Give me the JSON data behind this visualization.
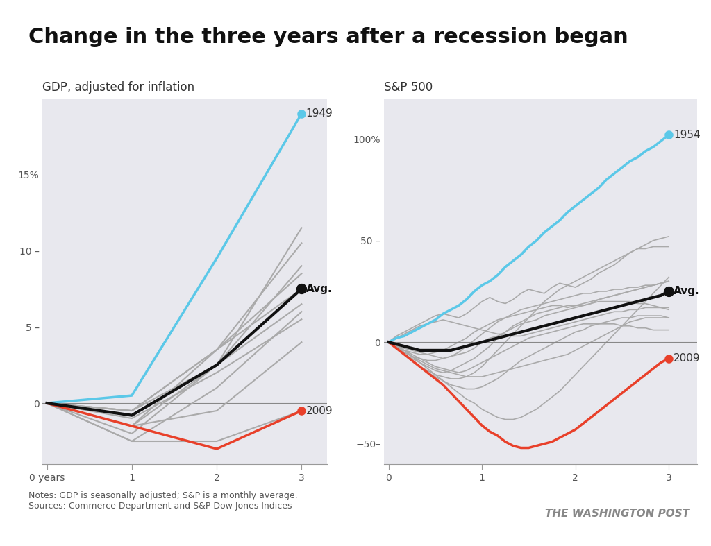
{
  "title": "Change in the three years after a recession began",
  "title_fontsize": 22,
  "gdp_subtitle": "GDP, adjusted for inflation",
  "sp_subtitle": "S&P 500",
  "notes": "Notes: GDP is seasonally adjusted; S&P is a monthly average.\nSources: Commerce Department and S&P Dow Jones Indices",
  "watermark": "THE WASHINGTON POST",
  "bg_color": "#f0f0f0",
  "panel_bg": "#e8e8ee",
  "highlight_color": "#5bc8e8",
  "red_color": "#e8402a",
  "gray_color": "#aaaaaa",
  "black_color": "#111111",
  "gdp_highlight_year": "1949",
  "gdp_red_year": "2009",
  "sp_highlight_year": "1954",
  "sp_red_year": "2009",
  "gdp_ylim": [
    -4,
    20
  ],
  "sp_ylim": [
    -60,
    120
  ],
  "gdp_yticks": [
    0,
    5,
    10,
    15
  ],
  "gdp_ytick_labels": [
    "0",
    "5 –",
    "10 –",
    "15%"
  ],
  "sp_yticks": [
    -50,
    0,
    50,
    100
  ],
  "sp_ytick_labels": [
    "-50–",
    "0",
    "50 –",
    "100%"
  ],
  "xticks": [
    0,
    1,
    2,
    3
  ],
  "gdp_xlabel_labels": [
    "0 years",
    "1",
    "2",
    "3"
  ],
  "sp_xlabel_labels": [
    "0",
    "1",
    "2",
    "3"
  ],
  "gdp_series": {
    "1949": [
      0,
      0.5,
      9.5,
      19.0
    ],
    "1953": [
      0,
      -1.5,
      3.5,
      8.5
    ],
    "1957": [
      0,
      -1.5,
      2.5,
      6.5
    ],
    "1960": [
      0,
      -0.5,
      3.5,
      7.5
    ],
    "1969": [
      0,
      -1.0,
      2.0,
      5.5
    ],
    "1973": [
      0,
      -1.5,
      -0.5,
      4.0
    ],
    "1980": [
      0,
      -2.5,
      1.0,
      6.0
    ],
    "1981": [
      0,
      -2.0,
      2.5,
      9.0
    ],
    "1990": [
      0,
      -0.5,
      3.5,
      10.5
    ],
    "2001": [
      0,
      -0.5,
      2.5,
      11.5
    ],
    "2007": [
      0,
      -2.5,
      -2.5,
      -0.5
    ],
    "2009_red": [
      0,
      -1.5,
      -3.0,
      -0.5
    ]
  },
  "gdp_avg": [
    0,
    -0.8,
    2.5,
    7.5
  ],
  "sp_series_monthly": {
    "1954": {
      "x": [
        0,
        0.083,
        0.167,
        0.25,
        0.333,
        0.417,
        0.5,
        0.583,
        0.667,
        0.75,
        0.833,
        0.917,
        1.0,
        1.083,
        1.167,
        1.25,
        1.333,
        1.417,
        1.5,
        1.583,
        1.667,
        1.75,
        1.833,
        1.917,
        2.0,
        2.083,
        2.167,
        2.25,
        2.333,
        2.417,
        2.5,
        2.583,
        2.667,
        2.75,
        2.833,
        2.917,
        3.0
      ],
      "y": [
        0,
        2,
        3,
        5,
        7,
        9,
        11,
        14,
        16,
        18,
        21,
        25,
        28,
        30,
        33,
        37,
        40,
        43,
        47,
        50,
        54,
        57,
        60,
        64,
        67,
        70,
        73,
        76,
        80,
        83,
        86,
        89,
        91,
        94,
        96,
        99,
        102
      ]
    },
    "1949": {
      "x": [
        0,
        0.083,
        0.167,
        0.25,
        0.333,
        0.417,
        0.5,
        0.583,
        0.667,
        0.75,
        0.833,
        0.917,
        1.0,
        1.083,
        1.167,
        1.25,
        1.333,
        1.417,
        1.5,
        1.583,
        1.667,
        1.75,
        1.833,
        1.917,
        2.0,
        2.083,
        2.167,
        2.25,
        2.333,
        2.417,
        2.5,
        2.583,
        2.667,
        2.75,
        2.833,
        2.917,
        3.0
      ],
      "y": [
        0,
        3,
        5,
        7,
        9,
        11,
        13,
        14,
        13,
        12,
        14,
        17,
        20,
        22,
        20,
        19,
        21,
        24,
        26,
        25,
        24,
        27,
        29,
        28,
        27,
        29,
        31,
        34,
        36,
        38,
        41,
        44,
        46,
        46,
        47,
        47,
        47
      ]
    },
    "1953": {
      "x": [
        0,
        0.083,
        0.167,
        0.25,
        0.333,
        0.417,
        0.5,
        0.583,
        0.667,
        0.75,
        0.833,
        0.917,
        1.0,
        1.083,
        1.167,
        1.25,
        1.333,
        1.417,
        1.5,
        1.583,
        1.667,
        1.75,
        1.833,
        1.917,
        2.0,
        2.083,
        2.167,
        2.25,
        2.333,
        2.417,
        2.5,
        2.583,
        2.667,
        2.75,
        2.833,
        2.917,
        3.0
      ],
      "y": [
        0,
        -2,
        -3,
        -4,
        -5,
        -6,
        -7,
        -8,
        -7,
        -6,
        -5,
        -3,
        0,
        2,
        3,
        5,
        7,
        9,
        10,
        11,
        13,
        14,
        15,
        16,
        17,
        18,
        19,
        21,
        22,
        23,
        24,
        25,
        26,
        27,
        28,
        29,
        30
      ]
    },
    "1957": {
      "x": [
        0,
        0.083,
        0.167,
        0.25,
        0.333,
        0.417,
        0.5,
        0.583,
        0.667,
        0.75,
        0.833,
        0.917,
        1.0,
        1.083,
        1.167,
        1.25,
        1.333,
        1.417,
        1.5,
        1.583,
        1.667,
        1.75,
        1.833,
        1.917,
        2.0,
        2.083,
        2.167,
        2.25,
        2.333,
        2.417,
        2.5,
        2.583,
        2.667,
        2.75,
        2.833,
        2.917,
        3.0
      ],
      "y": [
        0,
        -3,
        -6,
        -8,
        -10,
        -12,
        -14,
        -15,
        -14,
        -12,
        -10,
        -8,
        -5,
        -2,
        2,
        5,
        8,
        10,
        12,
        14,
        15,
        16,
        17,
        18,
        18,
        19,
        20,
        21,
        22,
        23,
        24,
        25,
        26,
        27,
        28,
        29,
        30
      ]
    },
    "1960": {
      "x": [
        0,
        0.083,
        0.167,
        0.25,
        0.333,
        0.417,
        0.5,
        0.583,
        0.667,
        0.75,
        0.833,
        0.917,
        1.0,
        1.083,
        1.167,
        1.25,
        1.333,
        1.417,
        1.5,
        1.583,
        1.667,
        1.75,
        1.833,
        1.917,
        2.0,
        2.083,
        2.167,
        2.25,
        2.333,
        2.417,
        2.5,
        2.583,
        2.667,
        2.75,
        2.833,
        2.917,
        3.0
      ],
      "y": [
        0,
        -2,
        -4,
        -5,
        -6,
        -6,
        -5,
        -4,
        -2,
        0,
        2,
        5,
        7,
        9,
        11,
        12,
        13,
        14,
        15,
        16,
        17,
        18,
        18,
        17,
        18,
        18,
        19,
        20,
        20,
        20,
        20,
        20,
        19,
        19,
        18,
        17,
        16
      ]
    },
    "1969": {
      "x": [
        0,
        0.083,
        0.167,
        0.25,
        0.333,
        0.417,
        0.5,
        0.583,
        0.667,
        0.75,
        0.833,
        0.917,
        1.0,
        1.083,
        1.167,
        1.25,
        1.333,
        1.417,
        1.5,
        1.583,
        1.667,
        1.75,
        1.833,
        1.917,
        2.0,
        2.083,
        2.167,
        2.25,
        2.333,
        2.417,
        2.5,
        2.583,
        2.667,
        2.75,
        2.833,
        2.917,
        3.0
      ],
      "y": [
        0,
        -2,
        -4,
        -6,
        -8,
        -10,
        -12,
        -13,
        -14,
        -15,
        -14,
        -12,
        -10,
        -8,
        -6,
        -4,
        -2,
        0,
        2,
        3,
        4,
        5,
        6,
        7,
        8,
        9,
        9,
        9,
        9,
        9,
        8,
        8,
        7,
        7,
        6,
        6,
        6
      ]
    },
    "1973": {
      "x": [
        0,
        0.083,
        0.167,
        0.25,
        0.333,
        0.417,
        0.5,
        0.583,
        0.667,
        0.75,
        0.833,
        0.917,
        1.0,
        1.083,
        1.167,
        1.25,
        1.333,
        1.417,
        1.5,
        1.583,
        1.667,
        1.75,
        1.833,
        1.917,
        2.0,
        2.083,
        2.167,
        2.25,
        2.333,
        2.417,
        2.5,
        2.583,
        2.667,
        2.75,
        2.833,
        2.917,
        3.0
      ],
      "y": [
        0,
        -3,
        -6,
        -9,
        -12,
        -15,
        -17,
        -19,
        -21,
        -22,
        -23,
        -23,
        -22,
        -20,
        -18,
        -15,
        -12,
        -9,
        -7,
        -5,
        -3,
        -1,
        1,
        3,
        5,
        6,
        8,
        9,
        10,
        11,
        12,
        12,
        13,
        13,
        13,
        13,
        12
      ]
    },
    "1980": {
      "x": [
        0,
        0.083,
        0.167,
        0.25,
        0.333,
        0.417,
        0.5,
        0.583,
        0.667,
        0.75,
        0.833,
        0.917,
        1.0,
        1.083,
        1.167,
        1.25,
        1.333,
        1.417,
        1.5,
        1.583,
        1.667,
        1.75,
        1.833,
        1.917,
        2.0,
        2.083,
        2.167,
        2.25,
        2.333,
        2.417,
        2.5,
        2.583,
        2.667,
        2.75,
        2.833,
        2.917,
        3.0
      ],
      "y": [
        0,
        2,
        4,
        6,
        8,
        9,
        10,
        11,
        10,
        9,
        8,
        7,
        6,
        5,
        4,
        4,
        3,
        3,
        4,
        5,
        6,
        7,
        8,
        9,
        10,
        11,
        12,
        13,
        14,
        15,
        15,
        16,
        16,
        17,
        17,
        17,
        17
      ]
    },
    "1981": {
      "x": [
        0,
        0.083,
        0.167,
        0.25,
        0.333,
        0.417,
        0.5,
        0.583,
        0.667,
        0.75,
        0.833,
        0.917,
        1.0,
        1.083,
        1.167,
        1.25,
        1.333,
        1.417,
        1.5,
        1.583,
        1.667,
        1.75,
        1.833,
        1.917,
        2.0,
        2.083,
        2.167,
        2.25,
        2.333,
        2.417,
        2.5,
        2.583,
        2.667,
        2.75,
        2.833,
        2.917,
        3.0
      ],
      "y": [
        0,
        -3,
        -6,
        -9,
        -12,
        -14,
        -16,
        -17,
        -18,
        -18,
        -17,
        -15,
        -12,
        -8,
        -4,
        0,
        4,
        8,
        12,
        16,
        20,
        23,
        26,
        28,
        30,
        32,
        34,
        36,
        38,
        40,
        42,
        44,
        46,
        48,
        50,
        51,
        52
      ]
    },
    "1990": {
      "x": [
        0,
        0.083,
        0.167,
        0.25,
        0.333,
        0.417,
        0.5,
        0.583,
        0.667,
        0.75,
        0.833,
        0.917,
        1.0,
        1.083,
        1.167,
        1.25,
        1.333,
        1.417,
        1.5,
        1.583,
        1.667,
        1.75,
        1.833,
        1.917,
        2.0,
        2.083,
        2.167,
        2.25,
        2.333,
        2.417,
        2.5,
        2.583,
        2.667,
        2.75,
        2.833,
        2.917,
        3.0
      ],
      "y": [
        0,
        -3,
        -5,
        -7,
        -8,
        -9,
        -9,
        -8,
        -7,
        -5,
        -2,
        1,
        4,
        7,
        10,
        12,
        14,
        16,
        17,
        18,
        19,
        20,
        21,
        22,
        23,
        24,
        24,
        25,
        25,
        26,
        26,
        27,
        27,
        28,
        28,
        29,
        30
      ]
    },
    "2001": {
      "x": [
        0,
        0.083,
        0.167,
        0.25,
        0.333,
        0.417,
        0.5,
        0.583,
        0.667,
        0.75,
        0.833,
        0.917,
        1.0,
        1.083,
        1.167,
        1.25,
        1.333,
        1.417,
        1.5,
        1.583,
        1.667,
        1.75,
        1.833,
        1.917,
        2.0,
        2.083,
        2.167,
        2.25,
        2.333,
        2.417,
        2.5,
        2.583,
        2.667,
        2.75,
        2.833,
        2.917,
        3.0
      ],
      "y": [
        0,
        -2,
        -5,
        -7,
        -9,
        -11,
        -13,
        -14,
        -15,
        -16,
        -17,
        -17,
        -17,
        -16,
        -15,
        -14,
        -13,
        -12,
        -11,
        -10,
        -9,
        -8,
        -7,
        -6,
        -4,
        -2,
        0,
        2,
        4,
        6,
        8,
        10,
        11,
        12,
        12,
        12,
        12
      ]
    },
    "2007": {
      "x": [
        0,
        0.083,
        0.167,
        0.25,
        0.333,
        0.417,
        0.5,
        0.583,
        0.667,
        0.75,
        0.833,
        0.917,
        1.0,
        1.083,
        1.167,
        1.25,
        1.333,
        1.417,
        1.5,
        1.583,
        1.667,
        1.75,
        1.833,
        1.917,
        2.0,
        2.083,
        2.167,
        2.25,
        2.333,
        2.417,
        2.5,
        2.583,
        2.667,
        2.75,
        2.833,
        2.917,
        3.0
      ],
      "y": [
        0,
        -2,
        -4,
        -7,
        -10,
        -13,
        -16,
        -19,
        -22,
        -25,
        -28,
        -30,
        -33,
        -35,
        -37,
        -38,
        -38,
        -37,
        -35,
        -33,
        -30,
        -27,
        -24,
        -20,
        -16,
        -12,
        -8,
        -4,
        0,
        4,
        8,
        12,
        16,
        20,
        24,
        28,
        32
      ]
    },
    "2009_red": {
      "x": [
        0,
        0.083,
        0.167,
        0.25,
        0.333,
        0.417,
        0.5,
        0.583,
        0.667,
        0.75,
        0.833,
        0.917,
        1.0,
        1.083,
        1.167,
        1.25,
        1.333,
        1.417,
        1.5,
        1.583,
        1.667,
        1.75,
        1.833,
        1.917,
        2.0,
        2.083,
        2.167,
        2.25,
        2.333,
        2.417,
        2.5,
        2.583,
        2.667,
        2.75,
        2.833,
        2.917,
        3.0
      ],
      "y": [
        0,
        -3,
        -6,
        -9,
        -12,
        -15,
        -18,
        -21,
        -25,
        -29,
        -33,
        -37,
        -41,
        -44,
        -46,
        -49,
        -51,
        -52,
        -52,
        -51,
        -50,
        -49,
        -47,
        -45,
        -43,
        -40,
        -37,
        -34,
        -31,
        -28,
        -25,
        -22,
        -19,
        -16,
        -13,
        -10,
        -8
      ]
    }
  },
  "sp_avg_x": [
    0,
    0.083,
    0.167,
    0.25,
    0.333,
    0.417,
    0.5,
    0.583,
    0.667,
    0.75,
    0.833,
    0.917,
    1.0,
    1.083,
    1.167,
    1.25,
    1.333,
    1.417,
    1.5,
    1.583,
    1.667,
    1.75,
    1.833,
    1.917,
    2.0,
    2.083,
    2.167,
    2.25,
    2.333,
    2.417,
    2.5,
    2.583,
    2.667,
    2.75,
    2.833,
    2.917,
    3.0
  ],
  "sp_avg_y": [
    0,
    -1,
    -2,
    -3,
    -4,
    -4,
    -4,
    -4,
    -4,
    -3,
    -2,
    -1,
    0,
    1,
    2,
    3,
    4,
    5,
    6,
    7,
    8,
    9,
    10,
    11,
    12,
    13,
    14,
    15,
    16,
    17,
    18,
    19,
    20,
    21,
    22,
    23,
    25
  ]
}
